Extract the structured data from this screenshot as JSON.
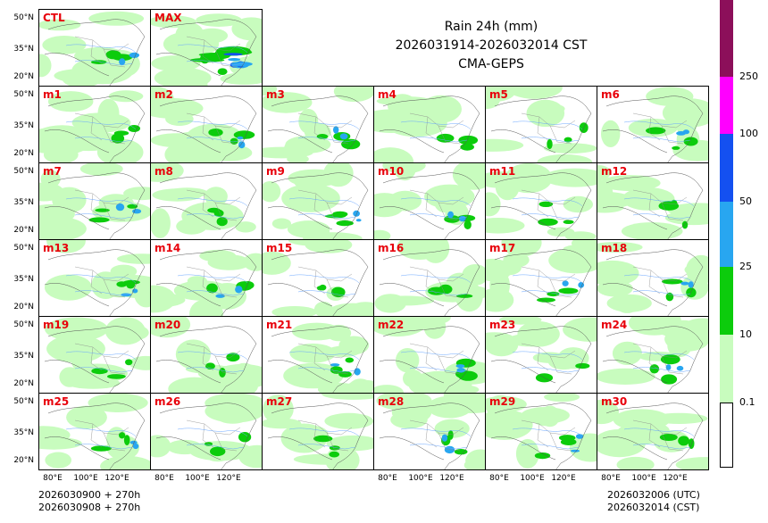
{
  "title": {
    "line1": "Rain 24h (mm)",
    "line2": "2026031914-2026032014 CST",
    "line3": "CMA-GEPS"
  },
  "top_panels": [
    "CTL",
    "MAX"
  ],
  "member_panels": [
    "m1",
    "m2",
    "m3",
    "m4",
    "m5",
    "m6",
    "m7",
    "m8",
    "m9",
    "m10",
    "m11",
    "m12",
    "m13",
    "m14",
    "m15",
    "m16",
    "m17",
    "m18",
    "m19",
    "m20",
    "m21",
    "m22",
    "m23",
    "m24",
    "m25",
    "m26",
    "m27",
    "m28",
    "m29",
    "m30"
  ],
  "lat_ticks": [
    "50°N",
    "35°N",
    "20°N"
  ],
  "lon_ticks": [
    "80°E",
    "100°E",
    "120°E"
  ],
  "footer": {
    "left_line1": "2026030900 + 270h",
    "left_line2": "2026030908 + 270h",
    "right_line1": "2026032006 (UTC)",
    "right_line2": "2026032014 (CST)"
  },
  "colorbar": {
    "levels": [
      {
        "label": "0.1",
        "color": "#ffffff"
      },
      {
        "label": "10",
        "color": "#c8fcbe"
      },
      {
        "label": "25",
        "color": "#0ccc0c"
      },
      {
        "label": "50",
        "color": "#28a6f0"
      },
      {
        "label": "100",
        "color": "#1450f0"
      },
      {
        "label": "250",
        "color": "#ff00ff"
      },
      {
        "label": "",
        "color": "#8c0f5a"
      }
    ]
  },
  "colors": {
    "light_rain": "#c8fcbe",
    "moderate_rain": "#0ccc0c",
    "heavy_rain": "#28a6f0",
    "very_heavy_rain": "#1450f0",
    "label_red": "#e8000b"
  }
}
